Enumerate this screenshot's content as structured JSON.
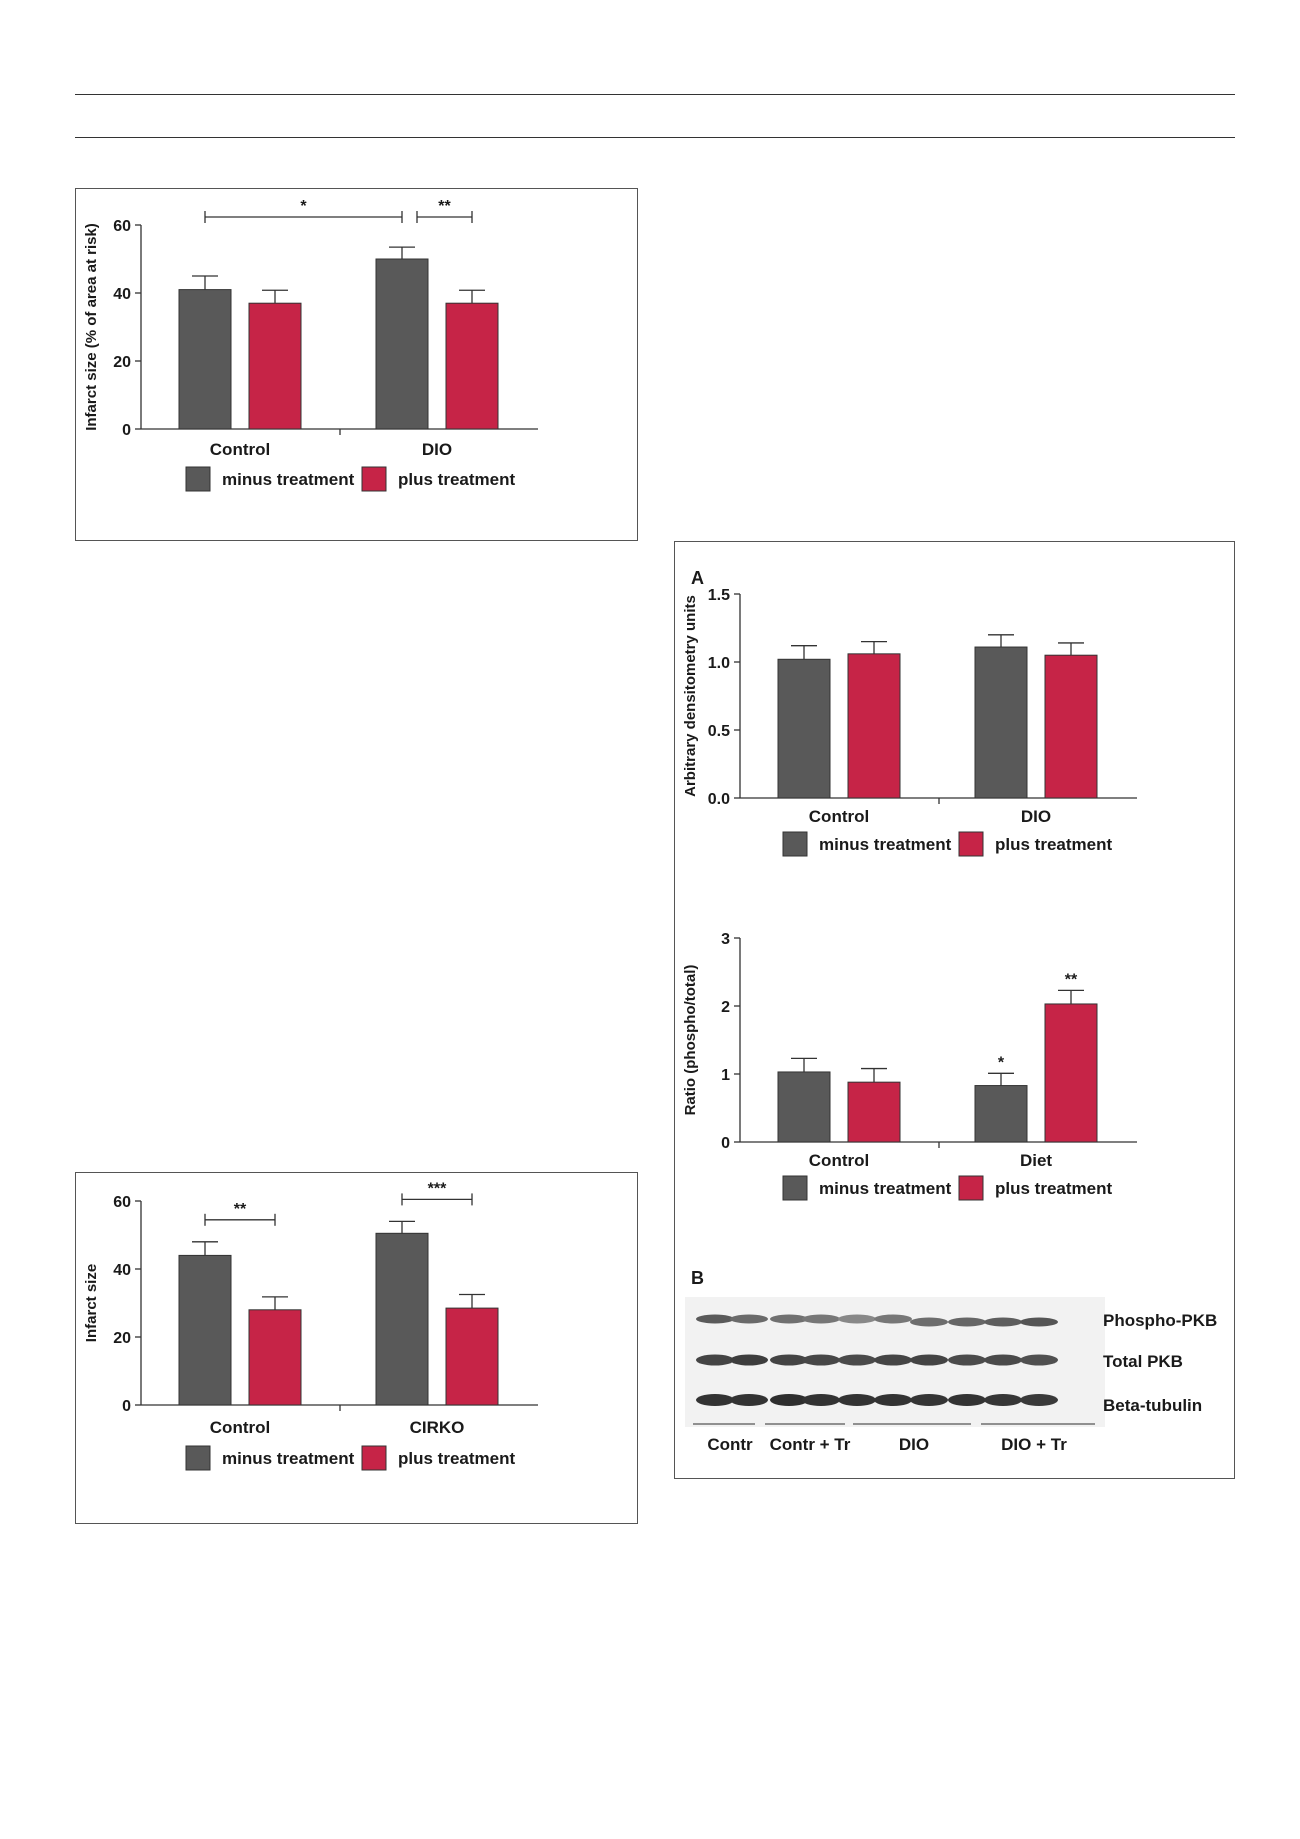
{
  "colors": {
    "minus": "#595959",
    "plus": "#c62447"
  },
  "charts": [
    {
      "id": "fig1",
      "type": "bar",
      "categories": [
        "Control",
        "DIO"
      ],
      "ylabel": "Infarct size (% of area at risk)",
      "ylim": [
        0,
        60
      ],
      "yticks": [
        "0",
        "20",
        "40",
        "60"
      ],
      "series": [
        {
          "name": "minus treatment",
          "values": [
            41,
            50
          ],
          "errors": [
            4,
            3.5
          ]
        },
        {
          "name": "plus treatment",
          "values": [
            37,
            37
          ],
          "errors": [
            3.8,
            3.8
          ]
        }
      ],
      "significance": [
        {
          "label": "*",
          "from": "Control minus",
          "to": "DIO minus"
        },
        {
          "label": "**",
          "from": "DIO minus",
          "to": "DIO plus"
        }
      ],
      "legend": [
        "minus treatment",
        "plus treatment"
      ]
    },
    {
      "id": "fig2",
      "type": "bar",
      "categories": [
        "Control",
        "CIRKO"
      ],
      "ylabel": "Infarct size",
      "ylim": [
        0,
        60
      ],
      "yticks": [
        "0",
        "20",
        "40",
        "60"
      ],
      "series": [
        {
          "name": "minus treatment",
          "values": [
            44,
            50.5
          ],
          "errors": [
            4,
            3.5
          ]
        },
        {
          "name": "plus treatment",
          "values": [
            28,
            28.5
          ],
          "errors": [
            3.8,
            4
          ]
        }
      ],
      "significance": [
        {
          "label": "**",
          "from": "Control minus",
          "to": "Control plus"
        },
        {
          "label": "***",
          "from": "CIRKO minus",
          "to": "CIRKO plus"
        }
      ],
      "legend": [
        "minus treatment",
        "plus treatment"
      ]
    },
    {
      "id": "fig3a",
      "type": "bar",
      "categories": [
        "Control",
        "DIO"
      ],
      "ylabel": "Arbitrary densitometry units",
      "ylim": [
        0,
        1.5
      ],
      "yticks": [
        "0.0",
        "0.5",
        "1.0",
        "1.5"
      ],
      "series": [
        {
          "name": "minus treatment",
          "values": [
            1.02,
            1.11
          ],
          "errors": [
            0.1,
            0.09
          ]
        },
        {
          "name": "plus treatment",
          "values": [
            1.06,
            1.05
          ],
          "errors": [
            0.09,
            0.09
          ]
        }
      ],
      "significance": [],
      "legend": [
        "minus treatment",
        "plus treatment"
      ]
    },
    {
      "id": "fig3b",
      "type": "bar",
      "categories": [
        "Control",
        "Diet"
      ],
      "ylabel": "Ratio (phospho/total)",
      "ylim": [
        0,
        3
      ],
      "yticks": [
        "0",
        "1",
        "2",
        "3"
      ],
      "series": [
        {
          "name": "minus treatment",
          "values": [
            1.03,
            0.83
          ],
          "errors": [
            0.2,
            0.18
          ]
        },
        {
          "name": "plus treatment",
          "values": [
            0.88,
            2.03
          ],
          "errors": [
            0.2,
            0.2
          ]
        }
      ],
      "bar_labels": [
        {
          "series": 0,
          "index": 1,
          "label": "*"
        },
        {
          "series": 1,
          "index": 1,
          "label": "**"
        }
      ],
      "significance": [],
      "legend": [
        "minus treatment",
        "plus treatment"
      ]
    }
  ],
  "panel_letters": {
    "a": "A",
    "b": "B"
  },
  "blot": {
    "rows": [
      "Phospho-PKB",
      "Total PKB",
      "Beta-tubulin"
    ],
    "groups": [
      "Contr",
      "Contr + Tr",
      "DIO",
      "DIO + Tr"
    ]
  }
}
